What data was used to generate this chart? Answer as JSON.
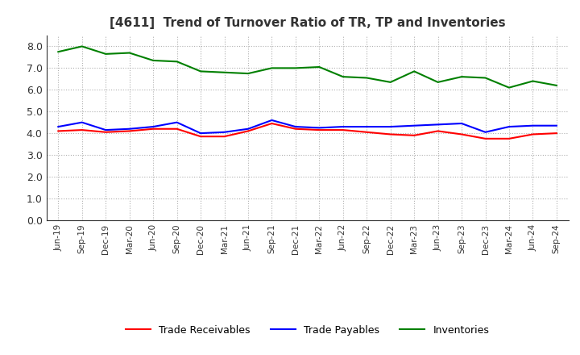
{
  "title": "[4611]  Trend of Turnover Ratio of TR, TP and Inventories",
  "x_labels": [
    "Jun-19",
    "Sep-19",
    "Dec-19",
    "Mar-20",
    "Jun-20",
    "Sep-20",
    "Dec-20",
    "Mar-21",
    "Jun-21",
    "Sep-21",
    "Dec-21",
    "Mar-22",
    "Jun-22",
    "Sep-22",
    "Dec-22",
    "Mar-23",
    "Jun-23",
    "Sep-23",
    "Dec-23",
    "Mar-24",
    "Jun-24",
    "Sep-24"
  ],
  "trade_receivables": [
    4.1,
    4.15,
    4.05,
    4.1,
    4.2,
    4.2,
    3.85,
    3.85,
    4.1,
    4.45,
    4.2,
    4.15,
    4.15,
    4.05,
    3.95,
    3.9,
    4.1,
    3.95,
    3.75,
    3.75,
    3.95,
    4.0
  ],
  "trade_payables": [
    4.3,
    4.5,
    4.15,
    4.2,
    4.3,
    4.5,
    4.0,
    4.05,
    4.2,
    4.6,
    4.3,
    4.25,
    4.3,
    4.3,
    4.3,
    4.35,
    4.4,
    4.45,
    4.05,
    4.3,
    4.35,
    4.35
  ],
  "inventories": [
    7.75,
    8.0,
    7.65,
    7.7,
    7.35,
    7.3,
    6.85,
    6.8,
    6.75,
    7.0,
    7.0,
    7.05,
    6.6,
    6.55,
    6.35,
    6.85,
    6.35,
    6.6,
    6.55,
    6.1,
    6.4,
    6.2
  ],
  "ylim": [
    0.0,
    8.5
  ],
  "yticks": [
    0.0,
    1.0,
    2.0,
    3.0,
    4.0,
    5.0,
    6.0,
    7.0,
    8.0
  ],
  "color_tr": "#ff0000",
  "color_tp": "#0000ff",
  "color_inv": "#008000",
  "legend_labels": [
    "Trade Receivables",
    "Trade Payables",
    "Inventories"
  ],
  "background_color": "#ffffff",
  "grid_color": "#b0b0b0"
}
